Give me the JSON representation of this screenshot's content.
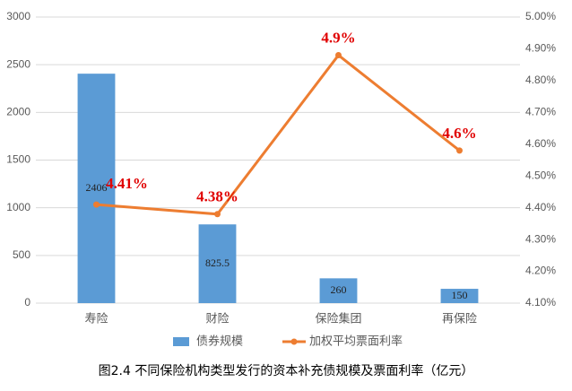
{
  "chart_data": {
    "type": "bar",
    "title": "图2.4  不同保险机构类型发行的资本补充债规模及票面利率（亿元）",
    "categories": [
      "寿险",
      "财险",
      "保险集团",
      "再保险"
    ],
    "series": [
      {
        "name": "债券规模",
        "type": "bar",
        "color": "#5b9bd5",
        "values": [
          2406,
          825.5,
          260,
          150
        ]
      },
      {
        "name": "加权平均票面利率",
        "type": "line",
        "axis": "y2",
        "color": "#ed7d31",
        "values": [
          4.41,
          4.38,
          4.88,
          4.58
        ],
        "value_labels": [
          "4.41%",
          "4.38%",
          "4.9%",
          "4.6%"
        ]
      }
    ],
    "ylim": [
      0,
      3000
    ],
    "yticks": [
      0,
      500,
      1000,
      1500,
      2000,
      2500,
      3000
    ],
    "y2lim": [
      4.1,
      5.0
    ],
    "y2ticks": [
      {
        "value": 4.1,
        "label": "4.10%"
      },
      {
        "value": 4.2,
        "label": "4.20%"
      },
      {
        "value": 4.3,
        "label": "4.30%"
      },
      {
        "value": 4.4,
        "label": "4.40%"
      },
      {
        "value": 4.5,
        "label": "4.50%"
      },
      {
        "value": 4.6,
        "label": "4.60%"
      },
      {
        "value": 4.7,
        "label": "4.70%"
      },
      {
        "value": 4.8,
        "label": "4.80%"
      },
      {
        "value": 4.9,
        "label": "4.90%"
      },
      {
        "value": 5.0,
        "label": "5.00%"
      }
    ],
    "grid": true,
    "legend": "bottom"
  }
}
